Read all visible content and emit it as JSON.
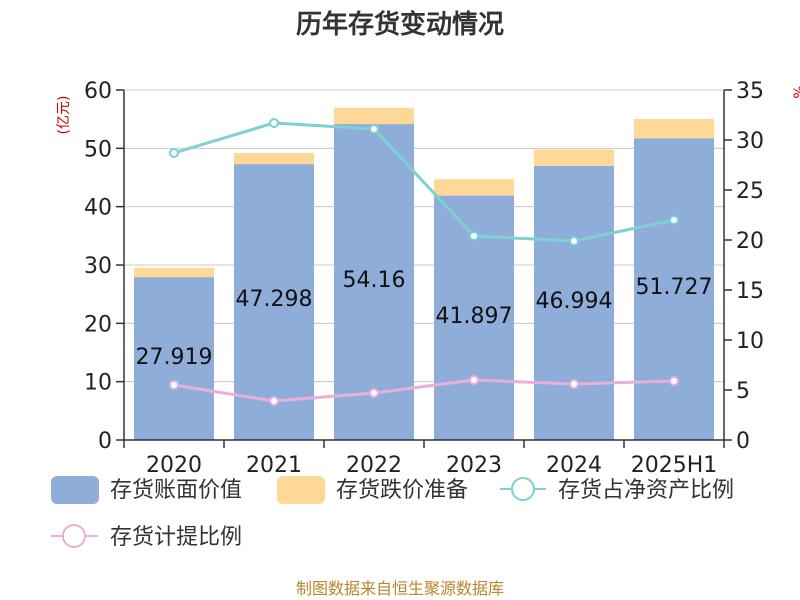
{
  "title": "历年存货变动情况",
  "source": "制图数据来自恒生聚源数据库",
  "chart_data": {
    "type": "bar",
    "stacked": true,
    "title": "历年存货变动情况",
    "categories": [
      "2020",
      "2021",
      "2022",
      "2023",
      "2024",
      "2025H1"
    ],
    "y_left": {
      "label": "(亿元)",
      "range": [
        0,
        60
      ],
      "ticks": [
        0,
        10,
        20,
        30,
        40,
        50,
        60
      ]
    },
    "y_right": {
      "label": "%",
      "range": [
        0,
        35
      ],
      "ticks": [
        0,
        5,
        10,
        15,
        20,
        25,
        30,
        35
      ]
    },
    "series": [
      {
        "name": "存货账面价值",
        "type": "bar",
        "axis": "left",
        "color": "#8fadd9",
        "values": [
          27.919,
          47.298,
          54.16,
          41.897,
          46.994,
          51.727
        ],
        "labels": [
          "27.919",
          "47.298",
          "54.16",
          "41.897",
          "46.994",
          "51.727"
        ]
      },
      {
        "name": "存货跌价准备",
        "type": "bar",
        "axis": "left",
        "color": "#ffd898",
        "values": [
          1.6,
          1.9,
          2.8,
          2.8,
          2.8,
          3.3
        ]
      },
      {
        "name": "存货占净资产比例",
        "type": "line",
        "axis": "right",
        "color": "#7fd0d0",
        "values": [
          28.7,
          31.7,
          31.1,
          20.4,
          19.9,
          22.0
        ]
      },
      {
        "name": "存货计提比例",
        "type": "line",
        "axis": "right",
        "color": "#e6b0d8",
        "values": [
          5.5,
          3.9,
          4.7,
          6.0,
          5.6,
          5.9
        ]
      }
    ],
    "legend_position": "bottom",
    "grid": true
  }
}
